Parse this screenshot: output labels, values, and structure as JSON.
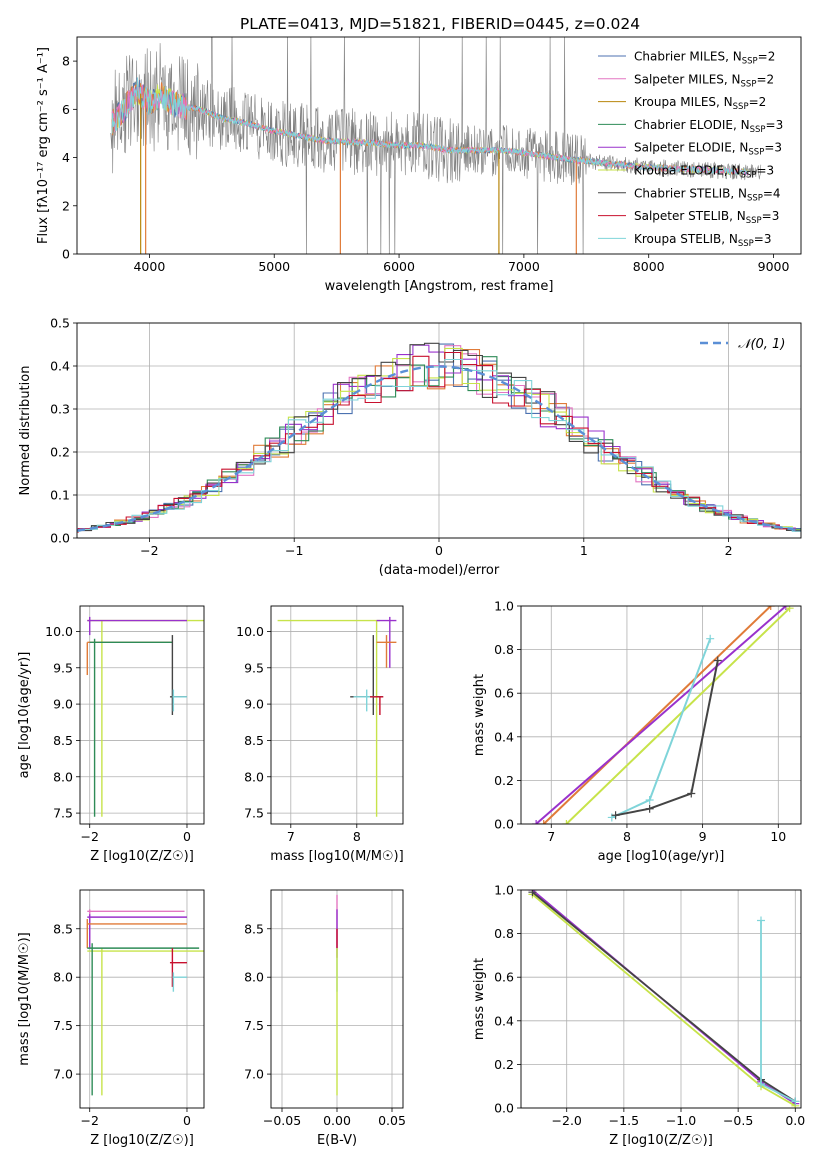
{
  "figure_title": "PLATE=0413, MJD=51821, FIBERID=0445, z=0.024",
  "colors": {
    "chabrier_miles": "#4c72b0",
    "salpeter_miles": "#e377c2",
    "kroupa_miles": "#b8860b",
    "chabrier_elodie": "#2e8b57",
    "salpeter_elodie": "#9932cc",
    "kroupa_elodie": "#c7e34a",
    "chabrier_stelib": "#444444",
    "salpeter_stelib": "#c8102e",
    "kroupa_stelib": "#7fd4d9",
    "orange": "#e07b39",
    "data_grey": "#808080",
    "normal": "#5b8fd6"
  },
  "chart_data": [
    {
      "id": "spectrum",
      "type": "line",
      "xlabel": "wavelength [Angstrom, rest frame]",
      "ylabel": "Flux [fλ10⁻¹⁷ erg cm⁻² s⁻¹ A⁻¹]",
      "xlim": [
        3420,
        9220
      ],
      "ylim": [
        0,
        9
      ],
      "xticks": [
        4000,
        5000,
        6000,
        7000,
        8000,
        9000
      ],
      "yticks": [
        0,
        2,
        4,
        6,
        8
      ],
      "continuum": {
        "x": [
          3700,
          3800,
          3900,
          4000,
          4100,
          4200,
          4400,
          4600,
          4800,
          5000,
          5200,
          5400,
          5600,
          5800,
          6000,
          6200,
          6400,
          6600,
          6800,
          7000,
          7200,
          7400,
          7600,
          7800,
          8000,
          8200,
          8400,
          8600,
          8800
        ],
        "y": [
          5.4,
          6.0,
          6.8,
          6.3,
          6.6,
          6.2,
          6.0,
          5.6,
          5.4,
          5.1,
          4.9,
          4.7,
          4.65,
          4.6,
          4.5,
          4.5,
          4.3,
          4.3,
          4.3,
          4.2,
          4.05,
          3.9,
          3.8,
          3.7,
          3.6,
          3.55,
          3.5,
          3.45,
          3.4
        ]
      },
      "legend": [
        {
          "label": "Chabrier MILES, N_SSP=2",
          "color": "chabrier_miles"
        },
        {
          "label": "Salpeter MILES, N_SSP=2",
          "color": "salpeter_miles"
        },
        {
          "label": "Kroupa MILES, N_SSP=2",
          "color": "kroupa_miles"
        },
        {
          "label": "Chabrier ELODIE, N_SSP=3",
          "color": "chabrier_elodie"
        },
        {
          "label": "Salpeter ELODIE, N_SSP=3",
          "color": "salpeter_elodie"
        },
        {
          "label": "Kroupa ELODIE, N_SSP=3",
          "color": "kroupa_elodie"
        },
        {
          "label": "Chabrier STELIB, N_SSP=4",
          "color": "chabrier_stelib"
        },
        {
          "label": "Salpeter STELIB, N_SSP=3",
          "color": "salpeter_stelib"
        },
        {
          "label": "Kroupa STELIB, N_SSP=3",
          "color": "kroupa_stelib"
        }
      ]
    },
    {
      "id": "residuals",
      "type": "line",
      "xlabel": "(data-model)/error",
      "ylabel": "Normed distribution",
      "xlim": [
        -2.5,
        2.5
      ],
      "ylim": [
        0,
        0.5
      ],
      "xticks": [
        -2,
        -1,
        0,
        1,
        2
      ],
      "yticks": [
        0.0,
        0.1,
        0.2,
        0.3,
        0.4,
        0.5
      ],
      "legend": "𝒩(0, 1)"
    },
    {
      "id": "age_vs_Z",
      "type": "scatter",
      "xlabel": "Z [log10(Z/Z☉)]",
      "ylabel": "age  [log10(age/yr)]",
      "xlim": [
        -2.2,
        0.35
      ],
      "ylim": [
        7.35,
        10.35
      ],
      "xticks": [
        -2,
        0
      ],
      "yticks": [
        7.5,
        8.0,
        8.5,
        9.0,
        9.5,
        10.0
      ]
    },
    {
      "id": "age_vs_mass",
      "type": "scatter",
      "xlabel": "mass [log10(M/M☉)]",
      "ylabel": "",
      "xlim": [
        6.7,
        8.7
      ],
      "ylim": [
        7.35,
        10.35
      ],
      "xticks": [
        7,
        8
      ],
      "yticks": [
        7.5,
        8.0,
        8.5,
        9.0,
        9.5,
        10.0
      ]
    },
    {
      "id": "massweight_vs_age",
      "type": "line",
      "xlabel": "age  [log10(age/yr)]",
      "ylabel": "mass weight",
      "xlim": [
        6.6,
        10.3
      ],
      "ylim": [
        0,
        1
      ],
      "xticks": [
        7,
        8,
        9,
        10
      ],
      "yticks": [
        0.0,
        0.2,
        0.4,
        0.6,
        0.8,
        1.0
      ],
      "series": [
        {
          "color": "orange",
          "x": [
            6.9,
            9.9
          ],
          "y": [
            0.0,
            1.0
          ]
        },
        {
          "color": "salpeter_elodie",
          "x": [
            6.8,
            10.1
          ],
          "y": [
            0.0,
            1.0
          ]
        },
        {
          "color": "kroupa_elodie",
          "x": [
            7.2,
            10.15
          ],
          "y": [
            0.0,
            0.99
          ]
        },
        {
          "color": "kroupa_stelib",
          "x": [
            7.8,
            8.3,
            9.1
          ],
          "y": [
            0.03,
            0.11,
            0.85
          ]
        },
        {
          "color": "chabrier_stelib",
          "x": [
            7.85,
            8.3,
            8.85,
            9.2
          ],
          "y": [
            0.04,
            0.07,
            0.14,
            0.75
          ]
        }
      ]
    },
    {
      "id": "mass_vs_Z",
      "type": "scatter",
      "xlabel": "Z [log10(Z/Z☉)]",
      "ylabel": "mass [log10(M/M☉)]",
      "xlim": [
        -2.2,
        0.35
      ],
      "ylim": [
        6.65,
        8.9
      ],
      "xticks": [
        -2,
        0
      ],
      "yticks": [
        7.0,
        7.5,
        8.0,
        8.5
      ]
    },
    {
      "id": "mass_vs_ebv",
      "type": "scatter",
      "xlabel": "E(B-V)",
      "ylabel": "",
      "xlim": [
        -0.06,
        0.06
      ],
      "ylim": [
        6.65,
        8.9
      ],
      "xticks": [
        -0.05,
        0.0,
        0.05
      ],
      "yticks": [
        7.0,
        7.5,
        8.0,
        8.5
      ]
    },
    {
      "id": "massweight_vs_Z",
      "type": "line",
      "xlabel": "Z [log10(Z/Z☉)]",
      "ylabel": "mass weight",
      "xlim": [
        -2.4,
        0.05
      ],
      "ylim": [
        0,
        1
      ],
      "xticks": [
        -2.0,
        -1.5,
        -1.0,
        -0.5,
        0.0
      ],
      "yticks": [
        0.0,
        0.2,
        0.4,
        0.6,
        0.8,
        1.0
      ],
      "series": [
        {
          "color": "salpeter_elodie",
          "x": [
            -2.3,
            -0.3,
            0.0
          ],
          "y": [
            1.0,
            0.12,
            0.02
          ]
        },
        {
          "color": "kroupa_elodie",
          "x": [
            -2.3,
            -0.3,
            0.0
          ],
          "y": [
            0.98,
            0.1,
            0.01
          ]
        },
        {
          "color": "chabrier_stelib",
          "x": [
            -2.3,
            -0.3,
            0.0
          ],
          "y": [
            0.99,
            0.13,
            0.03
          ]
        },
        {
          "color": "kroupa_stelib",
          "x": [
            -0.3,
            -0.3,
            0.0
          ],
          "y": [
            0.86,
            0.11,
            0.03
          ]
        }
      ]
    }
  ]
}
